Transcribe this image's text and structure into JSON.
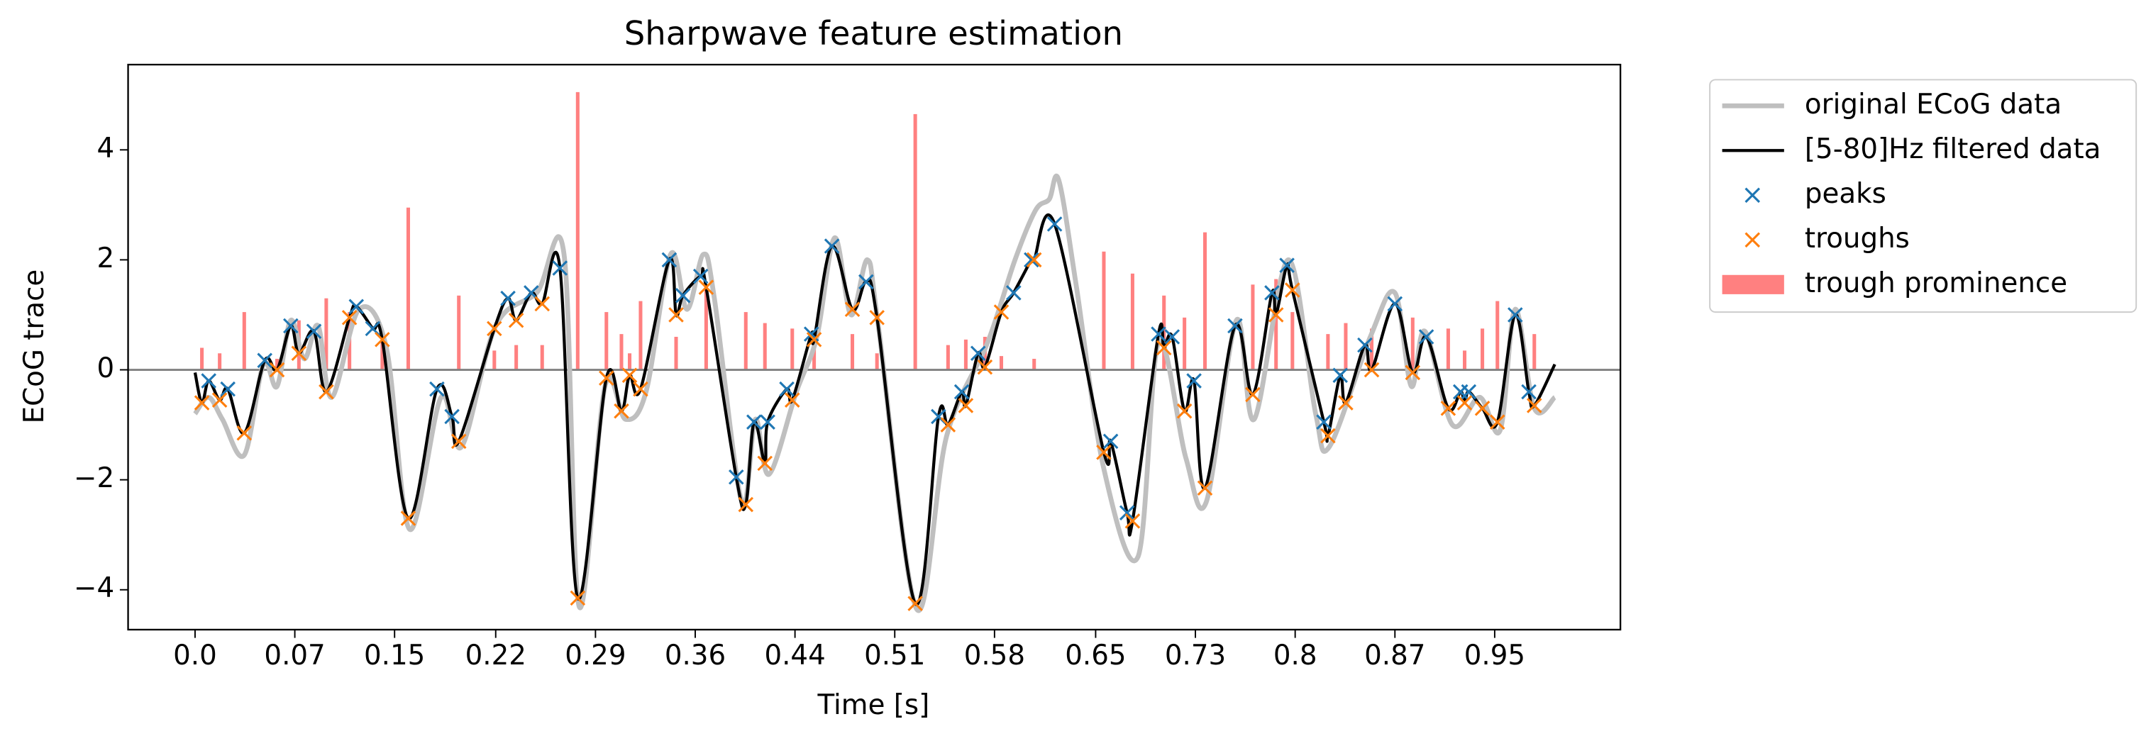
{
  "chart_data": {
    "type": "line",
    "title": "Sharpwave feature estimation",
    "xlabel": "Time [s]",
    "ylabel": "ECoG trace",
    "xlim": [
      -0.049,
      1.043
    ],
    "ylim": [
      -4.725,
      5.55
    ],
    "xticks": [
      {
        "value": 0,
        "label": "0.0"
      },
      {
        "value": 0.073,
        "label": "0.07"
      },
      {
        "value": 0.146,
        "label": "0.15"
      },
      {
        "value": 0.22,
        "label": "0.22"
      },
      {
        "value": 0.293,
        "label": "0.29"
      },
      {
        "value": 0.366,
        "label": "0.36"
      },
      {
        "value": 0.439,
        "label": "0.44"
      },
      {
        "value": 0.512,
        "label": "0.51"
      },
      {
        "value": 0.585,
        "label": "0.58"
      },
      {
        "value": 0.659,
        "label": "0.65"
      },
      {
        "value": 0.732,
        "label": "0.73"
      },
      {
        "value": 0.805,
        "label": "0.8"
      },
      {
        "value": 0.878,
        "label": "0.87"
      },
      {
        "value": 0.951,
        "label": "0.95"
      }
    ],
    "yticks": [
      {
        "value": -4,
        "label": "−4"
      },
      {
        "value": -2,
        "label": "−2"
      },
      0,
      2,
      4
    ],
    "hline": 0,
    "hline_color": "#808080",
    "legend": "outside right",
    "series": [
      {
        "name": "trough prominence",
        "type": "bar",
        "color": "#ff8080",
        "x": [
          0.005,
          0.018,
          0.036,
          0.06,
          0.076,
          0.096,
          0.113,
          0.137,
          0.156,
          0.193,
          0.219,
          0.235,
          0.254,
          0.28,
          0.301,
          0.312,
          0.318,
          0.326,
          0.352,
          0.374,
          0.403,
          0.417,
          0.437,
          0.453,
          0.481,
          0.499,
          0.527,
          0.551,
          0.564,
          0.578,
          0.59,
          0.614,
          0.665,
          0.686,
          0.709,
          0.724,
          0.739,
          0.774,
          0.791,
          0.803,
          0.829,
          0.842,
          0.861,
          0.891,
          0.917,
          0.929,
          0.942,
          0.953,
          0.98
        ],
        "values": [
          0.4,
          0.3,
          1.05,
          0.2,
          0.9,
          1.3,
          1.05,
          0.5,
          2.95,
          1.35,
          0.35,
          0.45,
          0.45,
          5.05,
          1.05,
          0.65,
          0.3,
          1.25,
          0.6,
          1.55,
          1.05,
          0.85,
          0.75,
          0.7,
          0.65,
          0.3,
          4.65,
          0.45,
          0.55,
          0.6,
          0.25,
          0.2,
          2.15,
          1.75,
          1.35,
          0.95,
          2.5,
          1.55,
          1.65,
          1.05,
          0.65,
          0.85,
          0.75,
          0.95,
          0.75,
          0.35,
          0.75,
          1.25,
          0.65
        ]
      },
      {
        "name": "original ECoG data",
        "type": "line",
        "color": "#bfbfbf",
        "width": 3.5,
        "x": [
          0.0,
          0.01,
          0.02,
          0.036,
          0.05,
          0.06,
          0.07,
          0.08,
          0.09,
          0.1,
          0.12,
          0.14,
          0.157,
          0.18,
          0.195,
          0.22,
          0.25,
          0.27,
          0.281,
          0.3,
          0.315,
          0.33,
          0.348,
          0.36,
          0.372,
          0.38,
          0.4,
          0.41,
          0.42,
          0.44,
          0.455,
          0.468,
          0.48,
          0.492,
          0.5,
          0.528,
          0.55,
          0.58,
          0.6,
          0.615,
          0.625,
          0.632,
          0.645,
          0.665,
          0.69,
          0.705,
          0.725,
          0.74,
          0.762,
          0.775,
          0.8,
          0.82,
          0.83,
          0.86,
          0.878,
          0.89,
          0.9,
          0.92,
          0.94,
          0.955,
          0.966,
          0.98,
          0.995
        ],
        "values": [
          -0.8,
          -0.5,
          -0.9,
          -1.55,
          0.1,
          -0.3,
          0.9,
          0.2,
          0.8,
          -0.5,
          1.1,
          0.4,
          -2.9,
          -0.5,
          -1.4,
          0.8,
          1.4,
          2.1,
          -4.3,
          -0.3,
          -0.9,
          -0.4,
          2.1,
          1.1,
          2.1,
          1.3,
          -2.4,
          -0.9,
          -1.9,
          -0.4,
          0.6,
          2.4,
          1.0,
          2.0,
          0.8,
          -4.35,
          -1.2,
          0.5,
          2.0,
          2.9,
          3.1,
          3.45,
          1.5,
          -1.8,
          -3.4,
          0.5,
          -1.6,
          -2.4,
          0.9,
          -0.9,
          2.0,
          -0.8,
          -1.4,
          0.6,
          1.4,
          -0.3,
          0.7,
          -1.0,
          -0.5,
          -1.1,
          1.1,
          -0.7,
          -0.5
        ]
      },
      {
        "name": "[5-80]Hz filtered data",
        "type": "line",
        "color": "#000000",
        "width": 2.2,
        "x": [
          0.0,
          0.005,
          0.01,
          0.018,
          0.024,
          0.036,
          0.051,
          0.06,
          0.07,
          0.076,
          0.087,
          0.096,
          0.113,
          0.118,
          0.13,
          0.137,
          0.156,
          0.177,
          0.188,
          0.193,
          0.219,
          0.229,
          0.235,
          0.246,
          0.254,
          0.267,
          0.28,
          0.301,
          0.312,
          0.318,
          0.326,
          0.347,
          0.352,
          0.357,
          0.37,
          0.374,
          0.396,
          0.403,
          0.409,
          0.417,
          0.419,
          0.433,
          0.437,
          0.451,
          0.453,
          0.466,
          0.481,
          0.491,
          0.499,
          0.527,
          0.544,
          0.551,
          0.561,
          0.564,
          0.573,
          0.578,
          0.59,
          0.599,
          0.612,
          0.614,
          0.629,
          0.665,
          0.67,
          0.682,
          0.686,
          0.705,
          0.709,
          0.715,
          0.724,
          0.731,
          0.739,
          0.761,
          0.774,
          0.788,
          0.791,
          0.799,
          0.803,
          0.826,
          0.829,
          0.838,
          0.842,
          0.856,
          0.861,
          0.878,
          0.891,
          0.901,
          0.917,
          0.926,
          0.929,
          0.932,
          0.942,
          0.953,
          0.966,
          0.976,
          0.98,
          0.995
        ],
        "values": [
          -0.05,
          -0.6,
          -0.2,
          -0.55,
          -0.35,
          -1.15,
          0.17,
          0.0,
          0.8,
          0.3,
          0.7,
          -0.4,
          0.95,
          1.15,
          0.75,
          0.55,
          -2.7,
          -0.35,
          -0.85,
          -1.3,
          0.75,
          1.3,
          0.9,
          1.4,
          1.2,
          1.85,
          -4.15,
          -0.15,
          -0.75,
          -0.1,
          -0.35,
          2.0,
          1.0,
          1.35,
          1.7,
          1.5,
          -1.95,
          -2.45,
          -0.95,
          -1.7,
          -0.95,
          -0.35,
          -0.55,
          0.65,
          0.55,
          2.25,
          1.1,
          1.6,
          0.95,
          -4.25,
          -0.85,
          -1.0,
          -0.4,
          -0.65,
          0.3,
          0.05,
          1.05,
          1.4,
          2.0,
          2.0,
          2.65,
          -1.5,
          -1.3,
          -2.6,
          -2.75,
          0.65,
          0.4,
          0.6,
          -0.75,
          -0.2,
          -2.15,
          0.8,
          -0.45,
          1.4,
          1.0,
          1.9,
          1.45,
          -0.95,
          -1.2,
          -0.1,
          -0.6,
          0.45,
          0.0,
          1.2,
          -0.05,
          0.6,
          -0.7,
          -0.4,
          -0.6,
          -0.4,
          -0.7,
          -0.95,
          1.0,
          -0.4,
          -0.65,
          0.1
        ]
      },
      {
        "name": "peaks",
        "type": "scatter",
        "marker": "x",
        "color": "#1f77b4",
        "x": [
          0.01,
          0.024,
          0.051,
          0.07,
          0.087,
          0.118,
          0.13,
          0.177,
          0.188,
          0.229,
          0.246,
          0.267,
          0.347,
          0.357,
          0.37,
          0.396,
          0.409,
          0.419,
          0.433,
          0.451,
          0.466,
          0.491,
          0.544,
          0.561,
          0.573,
          0.599,
          0.612,
          0.629,
          0.67,
          0.682,
          0.705,
          0.715,
          0.731,
          0.761,
          0.788,
          0.799,
          0.826,
          0.838,
          0.856,
          0.878,
          0.901,
          0.926,
          0.932,
          0.966,
          0.976
        ],
        "values": [
          -0.2,
          -0.35,
          0.17,
          0.8,
          0.7,
          1.15,
          0.75,
          -0.35,
          -0.85,
          1.3,
          1.4,
          1.85,
          2.0,
          1.35,
          1.7,
          -1.95,
          -0.95,
          -0.95,
          -0.35,
          0.65,
          2.25,
          1.6,
          -0.85,
          -0.4,
          0.3,
          1.4,
          2.0,
          2.65,
          -1.3,
          -2.6,
          0.65,
          0.6,
          -0.2,
          0.8,
          1.4,
          1.9,
          -0.95,
          -0.1,
          0.45,
          1.2,
          0.6,
          -0.4,
          -0.4,
          1.0,
          -0.4
        ]
      },
      {
        "name": "troughs",
        "type": "scatter",
        "marker": "x",
        "color": "#ff7f0e",
        "x": [
          0.005,
          0.018,
          0.036,
          0.06,
          0.076,
          0.096,
          0.113,
          0.137,
          0.156,
          0.193,
          0.219,
          0.235,
          0.254,
          0.28,
          0.301,
          0.312,
          0.318,
          0.326,
          0.352,
          0.374,
          0.403,
          0.417,
          0.437,
          0.453,
          0.481,
          0.499,
          0.527,
          0.551,
          0.564,
          0.578,
          0.59,
          0.614,
          0.665,
          0.686,
          0.709,
          0.724,
          0.739,
          0.774,
          0.791,
          0.803,
          0.829,
          0.842,
          0.861,
          0.891,
          0.917,
          0.929,
          0.942,
          0.953,
          0.98
        ],
        "values": [
          -0.6,
          -0.55,
          -1.15,
          0.0,
          0.3,
          -0.4,
          0.95,
          0.55,
          -2.7,
          -1.3,
          0.75,
          0.9,
          1.2,
          -4.15,
          -0.15,
          -0.75,
          -0.1,
          -0.35,
          1.0,
          1.5,
          -2.45,
          -1.7,
          -0.55,
          0.55,
          1.1,
          0.95,
          -4.25,
          -1.0,
          -0.65,
          0.05,
          1.05,
          2.0,
          -1.5,
          -2.75,
          0.4,
          -0.75,
          -2.15,
          -0.45,
          1.0,
          1.45,
          -1.2,
          -0.6,
          0.0,
          -0.05,
          -0.7,
          -0.6,
          -0.7,
          -0.95,
          -0.65
        ]
      }
    ],
    "legend_order": [
      1,
      2,
      3,
      4,
      0
    ]
  }
}
